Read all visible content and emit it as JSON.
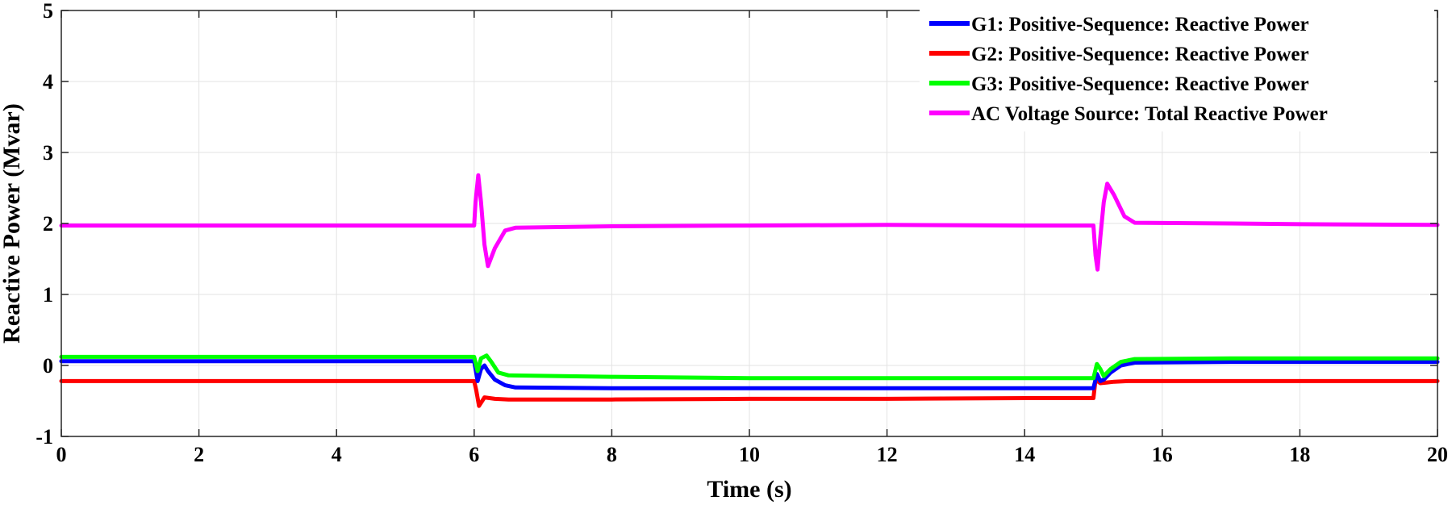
{
  "chart_data": {
    "type": "line",
    "title": "",
    "xlabel": "Time (s)",
    "ylabel": "Reactive Power (Mvar)",
    "xlim": [
      0,
      20
    ],
    "ylim": [
      -1,
      5
    ],
    "xticks": [
      0,
      2,
      4,
      6,
      8,
      10,
      12,
      14,
      16,
      18,
      20
    ],
    "yticks": [
      -1,
      0,
      1,
      2,
      3,
      4,
      5
    ],
    "grid": true,
    "legend_position": "top-right",
    "series": [
      {
        "name": "G1: Positive-Sequence: Reactive Power",
        "color": "#0000ff",
        "x": [
          0,
          6.0,
          6.05,
          6.1,
          6.15,
          6.2,
          6.3,
          6.45,
          6.6,
          8,
          10,
          12,
          14,
          15.0,
          15.05,
          15.1,
          15.15,
          15.25,
          15.4,
          15.6,
          17,
          18,
          20
        ],
        "y": [
          0.06,
          0.06,
          -0.22,
          -0.05,
          0.0,
          -0.08,
          -0.2,
          -0.28,
          -0.31,
          -0.32,
          -0.32,
          -0.32,
          -0.32,
          -0.32,
          -0.12,
          -0.22,
          -0.2,
          -0.1,
          0.0,
          0.04,
          0.05,
          0.05,
          0.05
        ]
      },
      {
        "name": "G2: Positive-Sequence: Reactive Power",
        "color": "#ff0000",
        "x": [
          0,
          6.0,
          6.03,
          6.07,
          6.15,
          6.3,
          6.5,
          8,
          10,
          12,
          14,
          15.0,
          15.03,
          15.1,
          15.2,
          15.3,
          15.5,
          17,
          18,
          20
        ],
        "y": [
          -0.22,
          -0.22,
          -0.35,
          -0.57,
          -0.45,
          -0.47,
          -0.48,
          -0.48,
          -0.47,
          -0.47,
          -0.46,
          -0.46,
          -0.2,
          -0.25,
          -0.24,
          -0.23,
          -0.22,
          -0.22,
          -0.22,
          -0.22
        ]
      },
      {
        "name": "G3: Positive-Sequence: Reactive Power",
        "color": "#00ff00",
        "x": [
          0,
          6.0,
          6.05,
          6.1,
          6.18,
          6.25,
          6.35,
          6.5,
          8,
          10,
          12,
          14,
          15.0,
          15.05,
          15.1,
          15.15,
          15.25,
          15.4,
          15.6,
          17,
          18,
          20
        ],
        "y": [
          0.12,
          0.12,
          -0.08,
          0.1,
          0.14,
          0.05,
          -0.1,
          -0.14,
          -0.16,
          -0.18,
          -0.18,
          -0.18,
          -0.18,
          0.02,
          -0.05,
          -0.15,
          -0.05,
          0.05,
          0.09,
          0.1,
          0.1,
          0.1
        ]
      },
      {
        "name": "AC Voltage Source: Total Reactive Power",
        "color": "#ff00ff",
        "x": [
          0,
          6.0,
          6.02,
          6.06,
          6.1,
          6.15,
          6.2,
          6.3,
          6.45,
          6.6,
          8,
          10,
          12,
          14,
          15.0,
          15.03,
          15.06,
          15.1,
          15.15,
          15.2,
          15.3,
          15.45,
          15.6,
          17,
          18,
          20
        ],
        "y": [
          1.97,
          1.97,
          2.3,
          2.68,
          2.3,
          1.7,
          1.4,
          1.65,
          1.9,
          1.94,
          1.96,
          1.97,
          1.98,
          1.97,
          1.97,
          1.55,
          1.35,
          1.8,
          2.3,
          2.56,
          2.4,
          2.1,
          2.01,
          2.0,
          1.99,
          1.98
        ]
      }
    ]
  }
}
